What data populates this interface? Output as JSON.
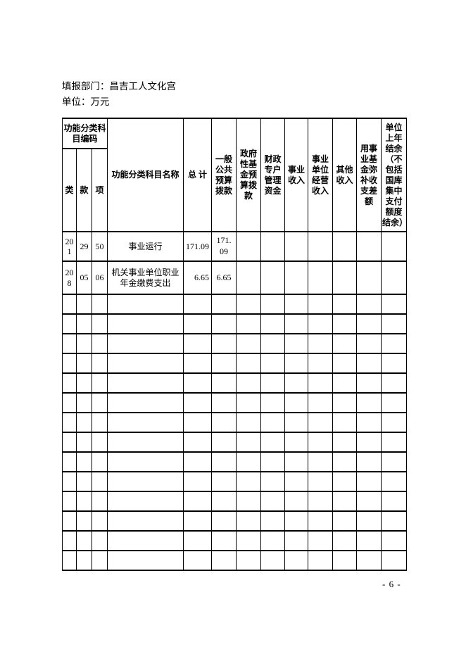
{
  "page": {
    "department_label": "填报部门：昌吉工人文化宫",
    "unit_label": "单位：万元",
    "page_number": "- 6 -"
  },
  "table": {
    "header": {
      "code_group": "功能分类科目编码",
      "code_cols": [
        "类",
        "款",
        "项"
      ],
      "columns": [
        "功能分类科目名称",
        "总 计",
        "一般公共预算拨款",
        "政府性基金预算拨款",
        "财政专户管理资金",
        "事业收入",
        "事业单位经营收入",
        "其他收入",
        "用事业基金弥补收支差额",
        "单位上年结余（不包括国库集中支付额度结余）"
      ]
    },
    "rows": [
      {
        "lei": "201",
        "kuan": "29",
        "xiang": "50",
        "name": "事业运行",
        "values": [
          "171.09",
          "171.09",
          "",
          "",
          "",
          "",
          "",
          "",
          ""
        ]
      },
      {
        "lei": "208",
        "kuan": "05",
        "xiang": "06",
        "name": "机关事业单位职业年金缴费支出",
        "values": [
          "6.65",
          "6.65",
          "",
          "",
          "",
          "",
          "",
          "",
          ""
        ]
      }
    ],
    "empty_row_count": 14
  }
}
